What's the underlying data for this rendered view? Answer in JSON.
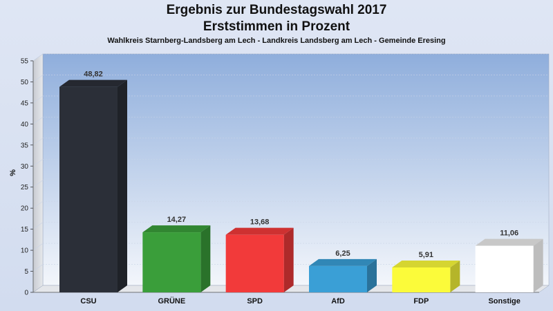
{
  "chart_data": {
    "type": "bar",
    "title": "Ergebnis zur Bundestagswahl 2017",
    "subtitle_main": "Erststimmen in Prozent",
    "subtitle": "Wahlkreis Starnberg-Landsberg am Lech - Landkreis Landsberg am Lech - Gemeinde Eresing",
    "ylabel": "%",
    "ylim": [
      0,
      55
    ],
    "yticks": [
      "0",
      "5",
      "10",
      "15",
      "20",
      "25",
      "30",
      "35",
      "40",
      "45",
      "50",
      "55"
    ],
    "categories": [
      "CSU",
      "GRÜNE",
      "SPD",
      "AfD",
      "FDP",
      "Sonstige"
    ],
    "values": [
      48.82,
      14.27,
      13.68,
      6.25,
      5.91,
      11.06
    ],
    "value_labels": [
      "48,82",
      "14,27",
      "13,68",
      "6,25",
      "5,91",
      "11,06"
    ],
    "colors": [
      "#2b2f38",
      "#3a9e3a",
      "#f23a3a",
      "#3a9fd6",
      "#fbfb3a",
      "#ffffff"
    ],
    "grid": true
  }
}
